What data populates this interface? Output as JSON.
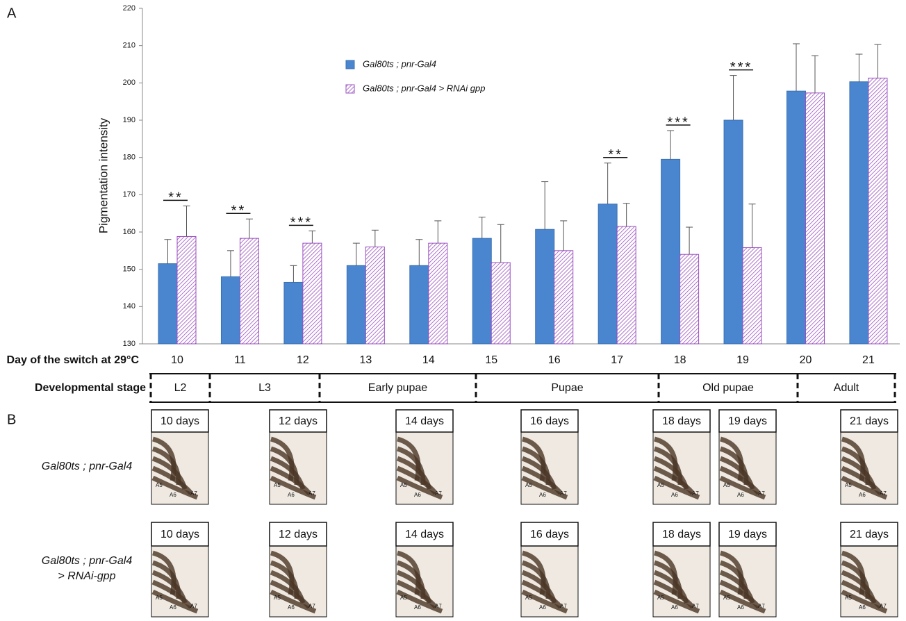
{
  "chart_data": {
    "type": "bar",
    "y_label": "Pigmentation intensity",
    "x_label": "Day of the switch at 29°C",
    "categories": [
      "10",
      "11",
      "12",
      "13",
      "14",
      "15",
      "16",
      "17",
      "18",
      "19",
      "20",
      "21"
    ],
    "series": [
      {
        "name": "Gal80ts ; pnr-Gal4",
        "color": "#4a86d0",
        "values": [
          151.5,
          148,
          146.5,
          151,
          151,
          158.3,
          160.7,
          167.5,
          179.5,
          190,
          197.8,
          200.3
        ],
        "errors": [
          6.5,
          7,
          4.5,
          6,
          7,
          5.7,
          12.8,
          11,
          7.7,
          12,
          12.7,
          7.4
        ]
      },
      {
        "name": "Gal80ts ; pnr-Gal4 > RNAi gpp",
        "color": "#9b4fc0",
        "hatch": true,
        "values": [
          158.8,
          158.3,
          157,
          156,
          157,
          151.8,
          155,
          161.5,
          154,
          155.8,
          197.3,
          201.3
        ],
        "errors": [
          8.2,
          5.2,
          3.3,
          4.5,
          6,
          10.2,
          8,
          6.2,
          7.3,
          11.7,
          10,
          9
        ]
      }
    ],
    "annotations": [
      {
        "category": "10",
        "text": "**"
      },
      {
        "category": "11",
        "text": "**"
      },
      {
        "category": "12",
        "text": "***"
      },
      {
        "category": "17",
        "text": "**"
      },
      {
        "category": "18",
        "text": "***"
      },
      {
        "category": "19",
        "text": "***"
      }
    ],
    "ylim": [
      130,
      220
    ],
    "yticks": [
      130,
      140,
      150,
      160,
      170,
      180,
      190,
      200,
      210,
      220
    ],
    "grid": false
  },
  "panel_labels": [
    "A",
    "B"
  ],
  "stages": {
    "label": "Developmental stage",
    "names": [
      "L2",
      "L3",
      "Early pupae",
      "Pupae",
      "Old pupae",
      "Adult"
    ]
  },
  "images": {
    "rows": [
      [
        "Gal80ts ; pnr-Gal4"
      ],
      [
        "Gal80ts ; pnr-Gal4",
        "> RNAi-gpp"
      ]
    ],
    "days": [
      "10 days",
      "12 days",
      "14 days",
      "16 days",
      "18 days",
      "19 days",
      "21 days"
    ],
    "segments": [
      "A5",
      "A6",
      "A7"
    ]
  }
}
